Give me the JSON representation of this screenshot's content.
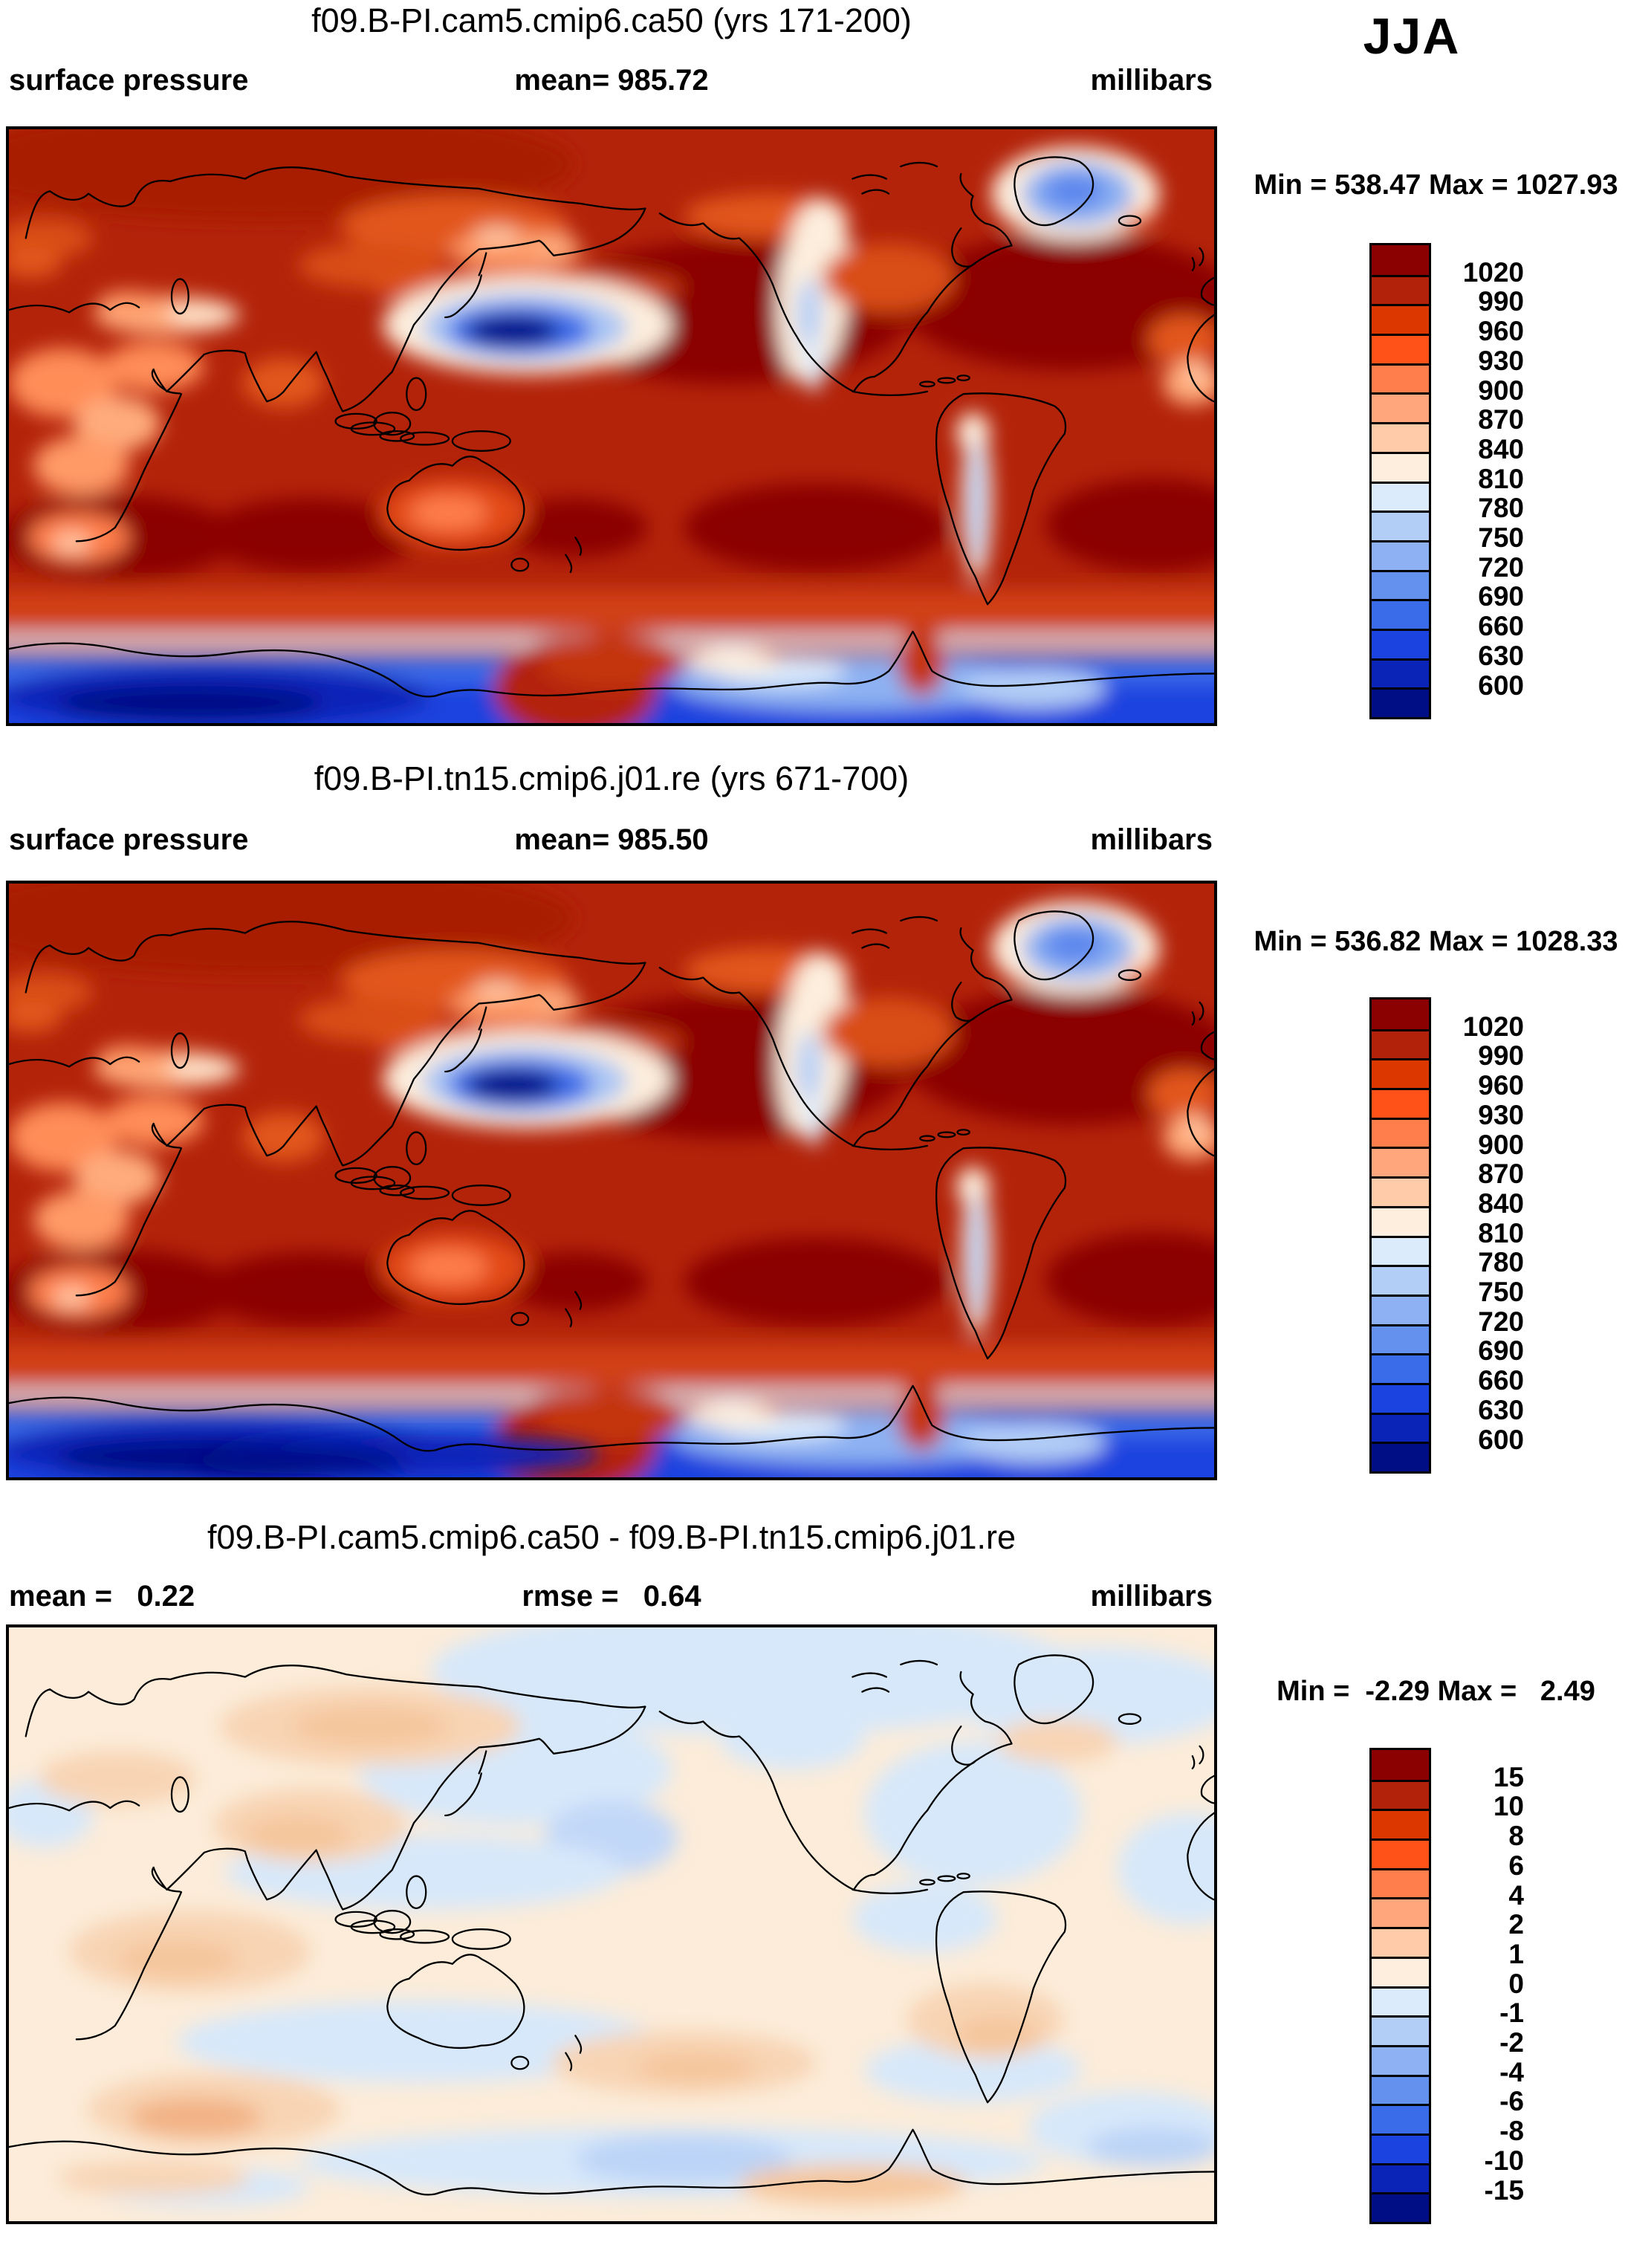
{
  "season": "JJA",
  "palette": [
    "#8b0000",
    "#b2220a",
    "#dd3700",
    "#ff5219",
    "#ff7e4b",
    "#ffa67d",
    "#ffcba8",
    "#fdeedd",
    "#dcebfb",
    "#b3cef6",
    "#8db1f2",
    "#6391ed",
    "#3a6be8",
    "#1a43df",
    "#0a24b8",
    "#000e86"
  ],
  "panels": [
    {
      "title": "f09.B-PI.cam5.cmip6.ca50 (yrs 171-200)",
      "left_label": "surface pressure",
      "center_label": "mean= 985.72",
      "right_label": "millibars",
      "minmax": "Min = 538.47 Max = 1027.93",
      "levels": [
        "1020",
        "990",
        "960",
        "930",
        "900",
        "870",
        "840",
        "810",
        "780",
        "750",
        "720",
        "690",
        "660",
        "630",
        "600"
      ]
    },
    {
      "title": "f09.B-PI.tn15.cmip6.j01.re (yrs 671-700)",
      "left_label": "surface pressure",
      "center_label": "mean= 985.50",
      "right_label": "millibars",
      "minmax": "Min = 536.82 Max = 1028.33",
      "levels": [
        "1020",
        "990",
        "960",
        "930",
        "900",
        "870",
        "840",
        "810",
        "780",
        "750",
        "720",
        "690",
        "660",
        "630",
        "600"
      ]
    },
    {
      "title": "f09.B-PI.cam5.cmip6.ca50 - f09.B-PI.tn15.cmip6.j01.re",
      "left_label": "mean =   0.22",
      "center_label": "rmse =   0.64",
      "right_label": "millibars",
      "minmax": "Min =  -2.29 Max =   2.49",
      "levels": [
        "15",
        "10",
        "8",
        "6",
        "4",
        "2",
        "1",
        "0",
        "-1",
        "-2",
        "-4",
        "-6",
        "-8",
        "-10",
        "-15"
      ]
    }
  ],
  "chart_data": [
    {
      "type": "heatmap",
      "title": "f09.B-PI.cam5.cmip6.ca50 (yrs 171-200)",
      "variable": "surface pressure",
      "units": "millibars",
      "season": "JJA",
      "mean": 985.72,
      "min": 538.47,
      "max": 1027.93,
      "contour_levels": [
        600,
        630,
        660,
        690,
        720,
        750,
        780,
        810,
        840,
        870,
        900,
        930,
        960,
        990,
        1020
      ],
      "projection": "global equirectangular, Pacific-centered (lon 0-360E, lat 90N-90S)",
      "legend_position": "right",
      "notes": "blue lows over Tibet, Greenland, Rockies, Andes and Antarctica; dark-red subtropical highs over oceans"
    },
    {
      "type": "heatmap",
      "title": "f09.B-PI.tn15.cmip6.j01.re (yrs 671-700)",
      "variable": "surface pressure",
      "units": "millibars",
      "season": "JJA",
      "mean": 985.5,
      "min": 536.82,
      "max": 1028.33,
      "contour_levels": [
        600,
        630,
        660,
        690,
        720,
        750,
        780,
        810,
        840,
        870,
        900,
        930,
        960,
        990,
        1020
      ],
      "projection": "global equirectangular, Pacific-centered (lon 0-360E, lat 90N-90S)",
      "legend_position": "right",
      "notes": "nearly identical spatial pattern to case above"
    },
    {
      "type": "heatmap",
      "title": "f09.B-PI.cam5.cmip6.ca50 - f09.B-PI.tn15.cmip6.j01.re",
      "variable": "surface pressure difference",
      "units": "millibars",
      "season": "JJA",
      "mean": 0.22,
      "rmse": 0.64,
      "min": -2.29,
      "max": 2.49,
      "contour_levels": [
        -15,
        -10,
        -8,
        -6,
        -4,
        -2,
        -1,
        0,
        1,
        2,
        4,
        6,
        8,
        10,
        15
      ],
      "projection": "global equirectangular, Pacific-centered (lon 0-360E, lat 90N-90S)",
      "legend_position": "right",
      "notes": "mostly within +/-1 mb: weak positive (peach) over central Asia and southern-ocean highs, weak negative (pale blue) over Arctic, mid-Pacific and circum-Antarctic band"
    }
  ]
}
